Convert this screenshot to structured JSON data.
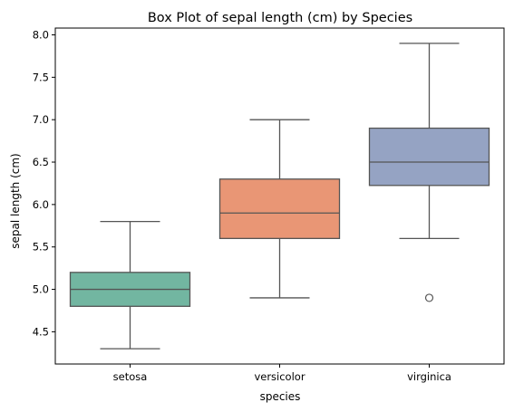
{
  "chart_data": {
    "type": "box",
    "title": "Box Plot of sepal length (cm) by Species",
    "xlabel": "species",
    "ylabel": "sepal length (cm)",
    "ylim": [
      4.12,
      8.08
    ],
    "yticks": [
      "4.5",
      "5.0",
      "5.5",
      "6.0",
      "6.5",
      "7.0",
      "7.5",
      "8.0"
    ],
    "grid": false,
    "categories": [
      "setosa",
      "versicolor",
      "virginica"
    ],
    "boxes": [
      {
        "category": "setosa",
        "whisker_low": 4.3,
        "q1": 4.8,
        "median": 5.0,
        "q3": 5.2,
        "whisker_high": 5.8,
        "outliers": [],
        "color": "#72b6a1"
      },
      {
        "category": "versicolor",
        "whisker_low": 4.9,
        "q1": 5.6,
        "median": 5.9,
        "q3": 6.3,
        "whisker_high": 7.0,
        "outliers": [],
        "color": "#e99675"
      },
      {
        "category": "virginica",
        "whisker_low": 5.6,
        "q1": 6.225,
        "median": 6.5,
        "q3": 6.9,
        "whisker_high": 7.9,
        "outliers": [
          4.9
        ],
        "color": "#95a3c3"
      }
    ],
    "line_color": "#555555"
  }
}
